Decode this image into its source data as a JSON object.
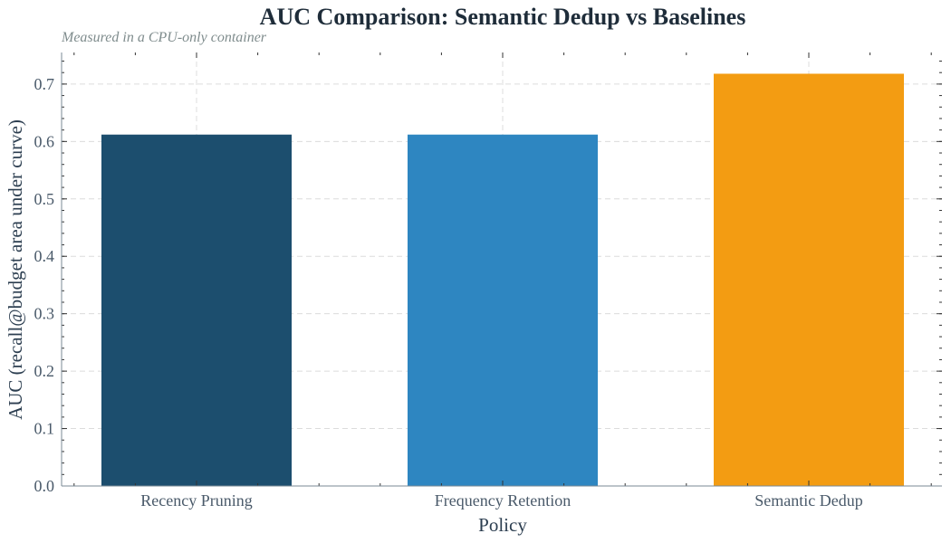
{
  "chart_data": {
    "type": "bar",
    "title": "AUC Comparison: Semantic Dedup vs Baselines",
    "subtitle": "Measured in a CPU-only container",
    "xlabel": "Policy",
    "ylabel": "AUC (recall@budget area under curve)",
    "categories": [
      "Recency Pruning",
      "Frequency Retention",
      "Semantic Dedup"
    ],
    "values": [
      0.612,
      0.612,
      0.718
    ],
    "colors": [
      "#1c4e6e",
      "#2e86c1",
      "#f39c12"
    ],
    "ylim": [
      0,
      0.755
    ],
    "yticks": [
      "0.0",
      "0.1",
      "0.2",
      "0.3",
      "0.4",
      "0.5",
      "0.6",
      "0.7"
    ],
    "grid": true,
    "legend": "none"
  }
}
